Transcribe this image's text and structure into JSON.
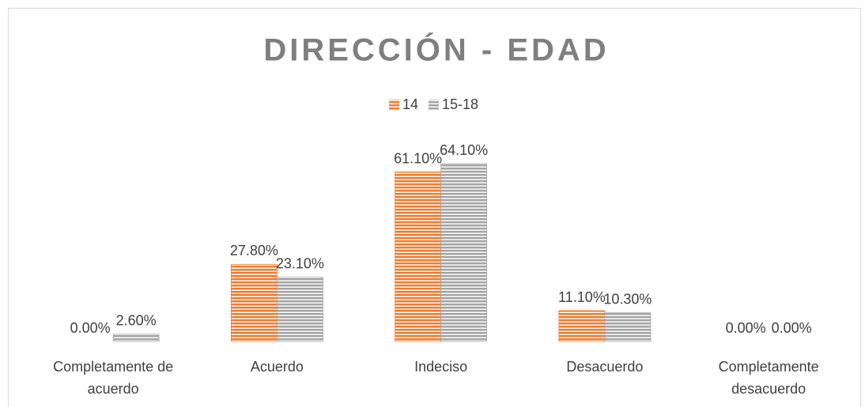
{
  "chart_data": {
    "type": "bar",
    "title": "DIRECCIÓN - EDAD",
    "categories": [
      "Completamente de acuerdo",
      "Acuerdo",
      "Indeciso",
      "Desacuerdo",
      "Completamente desacuerdo"
    ],
    "series": [
      {
        "name": "14",
        "color": "#ed7d31",
        "values": [
          0,
          27.8,
          61.1,
          11.1,
          0
        ],
        "value_labels": [
          "0.00%",
          "27.80%",
          "61.10%",
          "11.10%",
          "0.00%"
        ]
      },
      {
        "name": "15-18",
        "color": "#a5a5a5",
        "values": [
          2.6,
          23.1,
          64.1,
          10.3,
          0
        ],
        "value_labels": [
          "2.60%",
          "23.10%",
          "64.10%",
          "10.30%",
          "0.00%"
        ]
      }
    ],
    "legend": "top"
  }
}
